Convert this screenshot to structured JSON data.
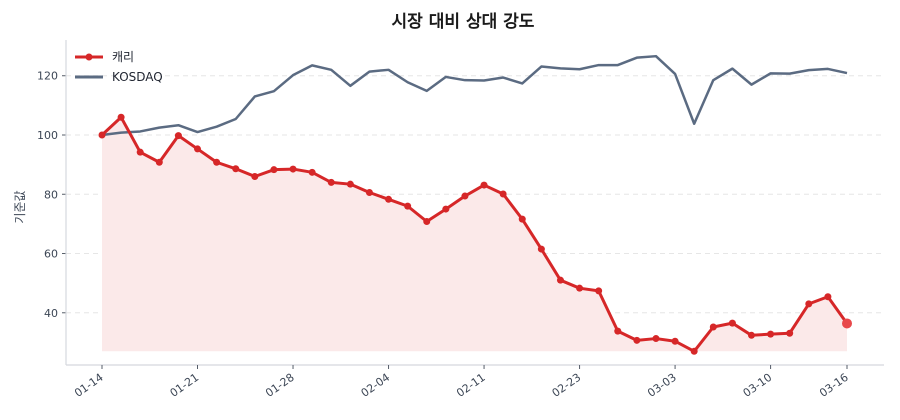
{
  "chart_data": {
    "type": "line",
    "title": "시장 대비 상대 강도",
    "xlabel": "",
    "ylabel": "기준값",
    "ylim": [
      22,
      132
    ],
    "yticks": [
      40,
      60,
      80,
      100,
      120
    ],
    "grid": "horizontal dashed",
    "legend_position": "upper left",
    "xtick_labels": [
      "01-14",
      "01-21",
      "01-28",
      "02-04",
      "02-11",
      "02-23",
      "03-03",
      "03-10",
      "03-16"
    ],
    "xtick_indices": [
      0,
      5,
      10,
      15,
      20,
      25,
      30,
      35,
      39
    ],
    "series": [
      {
        "name": "캐리",
        "color": "#d62728",
        "fill": "#fbe9e9",
        "marker": "circle",
        "values": [
          100,
          106,
          94.2,
          90.8,
          99.8,
          95.3,
          90.8,
          88.6,
          86.0,
          88.3,
          88.5,
          87.4,
          84.0,
          83.4,
          80.6,
          78.3,
          76.0,
          70.8,
          75.0,
          79.4,
          83.1,
          80.1,
          71.6,
          61.5,
          51.0,
          48.3,
          47.4,
          33.8,
          30.7,
          31.3,
          30.4,
          27.0,
          35.2,
          36.5,
          32.4,
          32.8,
          33.1,
          43.0,
          45.4,
          36.4
        ]
      },
      {
        "name": "KOSDAQ",
        "color": "#5b6b82",
        "marker": "none",
        "values": [
          100,
          100.8,
          101.2,
          102.5,
          103.3,
          101.0,
          102.8,
          105.4,
          113.0,
          114.8,
          120.2,
          123.5,
          122.0,
          116.6,
          121.4,
          122.0,
          117.8,
          114.9,
          119.6,
          118.5,
          118.4,
          119.4,
          117.4,
          123.1,
          122.5,
          122.2,
          123.6,
          123.6,
          126.1,
          126.6,
          120.6,
          103.8,
          118.5,
          122.4,
          117.0,
          120.8,
          120.7,
          121.9,
          122.3,
          120.9
        ]
      }
    ]
  }
}
